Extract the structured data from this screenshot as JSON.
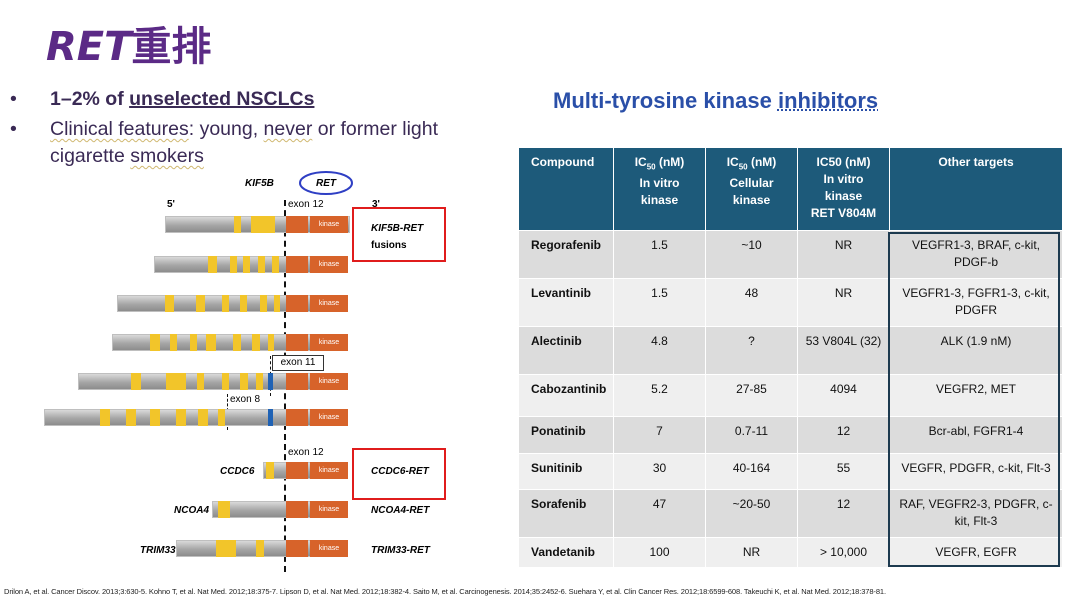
{
  "title": {
    "italic": "RET",
    "cn": "重排"
  },
  "bullets": [
    {
      "dot": "•",
      "text_pre": "1–2% of ",
      "text_u": "unselected NSCLCs"
    },
    {
      "dot": "•",
      "t1": "Clinical features",
      "t2": ": young",
      "t3": ", ",
      "t4": "never",
      "t5": " or former light"
    },
    {
      "cont1": "cigarette ",
      "cont2": "smokers"
    }
  ],
  "right_title": {
    "pre": "Multi-tyrosine kinase ",
    "u": "inhibitors"
  },
  "table": {
    "headers": [
      "Compound",
      "IC50 (nM) In vitro kinase",
      "IC50 (nM) Cellular kinase",
      "IC50 (nM) In vitro kinase RET V804M",
      "Other targets"
    ],
    "header_parts": {
      "h1": {
        "a": "IC",
        "sub": "50",
        "b": " (nM)",
        "c": "In vitro",
        "d": "kinase"
      },
      "h2": {
        "a": "IC",
        "sub": "50",
        "b": " (nM)",
        "c": "Cellular",
        "d": "kinase"
      },
      "h3": {
        "a": "IC50 (nM)",
        "c": "In vitro",
        "d": "kinase",
        "e": "RET V804M"
      }
    },
    "rows": [
      {
        "compound": "Regorafenib",
        "ic_vitro": "1.5",
        "ic_cell": "~10",
        "ic_v804m": "NR",
        "other": "VEGFR1-3, BRAF, c-kit, PDGF-b"
      },
      {
        "compound": "Levantinib",
        "ic_vitro": "1.5",
        "ic_cell": "48",
        "ic_v804m": "NR",
        "other": "VEGFR1-3, FGFR1-3, c-kit, PDGFR"
      },
      {
        "compound": "Alectinib",
        "ic_vitro": "4.8",
        "ic_cell": "?",
        "ic_v804m": "53 V804L (32)",
        "other": "ALK (1.9 nM)"
      },
      {
        "compound": "Cabozantinib",
        "ic_vitro": "5.2",
        "ic_cell": "27-85",
        "ic_v804m": "4094",
        "other": "VEGFR2, MET"
      },
      {
        "compound": "Ponatinib",
        "ic_vitro": "7",
        "ic_cell": "0.7-11",
        "ic_v804m": "12",
        "other": "Bcr-abl, FGFR1-4"
      },
      {
        "compound": "Sunitinib",
        "ic_vitro": "30",
        "ic_cell": "40-164",
        "ic_v804m": "55",
        "other": "VEGFR, PDGFR, c-kit, Flt-3"
      },
      {
        "compound": "Sorafenib",
        "ic_vitro": "47",
        "ic_cell": "~20-50",
        "ic_v804m": "12",
        "other": "RAF, VEGFR2-3, PDGFR, c-kit, Flt-3"
      },
      {
        "compound": "Vandetanib",
        "ic_vitro": "100",
        "ic_cell": "NR",
        "ic_v804m": "> 10,000",
        "other": "VEGFR, EGFR"
      }
    ]
  },
  "diagram": {
    "kif5b": "KIF5B",
    "ret": "RET",
    "five_prime": "5'",
    "three_prime": "3'",
    "exon12_top": "exon 12",
    "kinase": "kinase",
    "kif5b_ret": "KIF5B-RET",
    "fusions": "fusions",
    "exon11": "exon 11",
    "exon8": "exon 8",
    "exon12_bottom": "exon 12",
    "ccdc6": "CCDC6",
    "ccdc6_ret": "CCDC6-RET",
    "ncoa4": "NCOA4",
    "ncoa4_ret": "NCOA4-RET",
    "trim33": "TRIM33",
    "trim33_ret": "TRIM33-RET",
    "colors": {
      "exon": "#f2c52a",
      "kinase": "#d7632a",
      "blue": "#1f62b5",
      "highlight": "#e01c1c",
      "ellipse": "#2f3fc4"
    }
  },
  "footer": "Drilon A, et al. Cancer Discov. 2013;3:630-5. Kohno T, et al. Nat Med. 2012;18:375-7.  Lipson D, et al. Nat Med. 2012;18:382-4. Saito M, et al. Carcinogenesis. 2014;35:2452-6. Suehara Y, et al. Clin Cancer Res. 2012;18:6599-608. Takeuchi K, et al. Nat Med. 2012;18:378-81."
}
